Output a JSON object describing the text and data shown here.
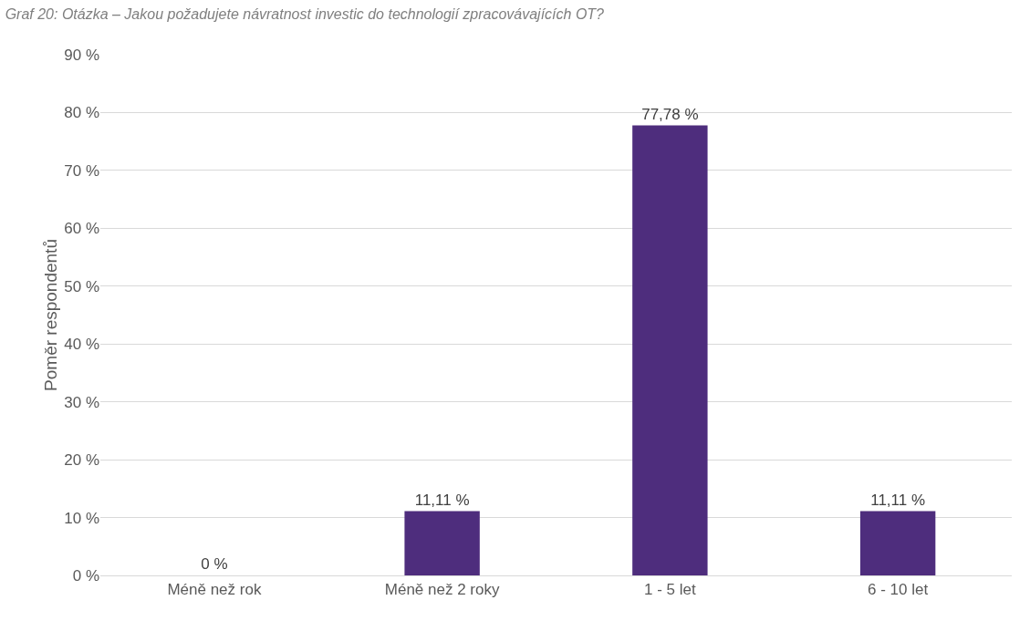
{
  "chart_data": {
    "type": "bar",
    "title": "Graf 20: Otázka – Jakou požadujete návratnost investic do technologií zpracovávajících OT?",
    "ylabel": "Poměr respondentů",
    "categories": [
      "Méně než rok",
      "Méně než 2 roky",
      "1 - 5 let",
      "6 - 10 let"
    ],
    "values": [
      0,
      11.11,
      77.78,
      11.11
    ],
    "value_labels": [
      "0 %",
      "11,11 %",
      "77,78 %",
      "11,11 %"
    ],
    "color": "#4e2d7d",
    "ylim": [
      0,
      90
    ],
    "yticks": [
      {
        "value": 0,
        "label": "0 %"
      },
      {
        "value": 10,
        "label": "10 %"
      },
      {
        "value": 20,
        "label": "20 %"
      },
      {
        "value": 30,
        "label": "30 %"
      },
      {
        "value": 40,
        "label": "40 %"
      },
      {
        "value": 50,
        "label": "50 %"
      },
      {
        "value": 60,
        "label": "60 %"
      },
      {
        "value": 70,
        "label": "70 %"
      },
      {
        "value": 80,
        "label": "80 %"
      },
      {
        "value": 90,
        "label": "90 %"
      }
    ],
    "grid": "y"
  }
}
